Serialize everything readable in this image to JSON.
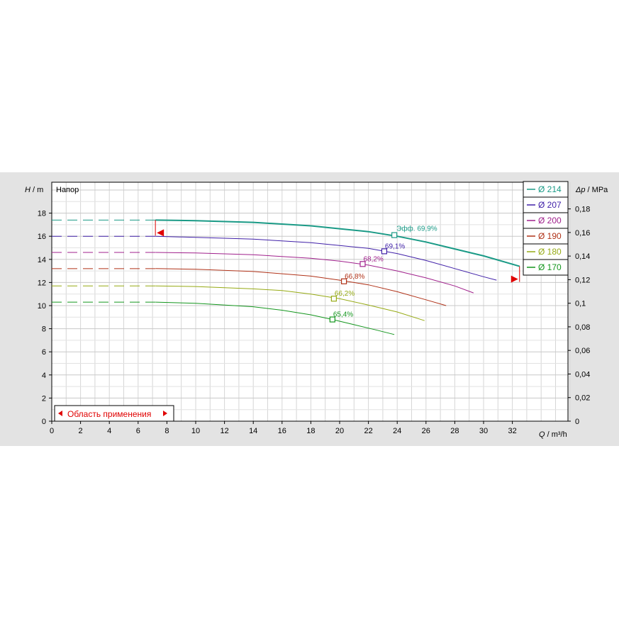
{
  "chart_data": {
    "type": "line",
    "title": "Напор",
    "xlabel": "Q / m³/h",
    "ylabel": "H / m",
    "y2label": "Δp / MPa",
    "xlim": [
      0,
      36
    ],
    "ylim": [
      0,
      20
    ],
    "y2lim": [
      0,
      0.196
    ],
    "xticks": [
      "0",
      "2",
      "4",
      "6",
      "8",
      "10",
      "12",
      "14",
      "16",
      "18",
      "20",
      "22",
      "24",
      "26",
      "28",
      "30",
      "32"
    ],
    "yticks": [
      "0",
      "2",
      "4",
      "6",
      "8",
      "10",
      "12",
      "14",
      "16",
      "18"
    ],
    "y2ticks": [
      "0",
      "0,02",
      "0,04",
      "0,06",
      "0,08",
      "0,1",
      "0,12",
      "0,14",
      "0,16",
      "0,18"
    ],
    "grid": true,
    "legend_position": "top-right",
    "application_range_label": "Область применения",
    "series": [
      {
        "name": "Ø 214",
        "color": "#1a9a86",
        "width": 2,
        "dashed_x": [
          0,
          7.2
        ],
        "dashed_h": 17.4,
        "x": [
          7.2,
          10,
          14,
          18,
          20,
          22,
          24,
          26,
          28,
          30,
          32.5
        ],
        "y": [
          17.4,
          17.35,
          17.2,
          16.9,
          16.65,
          16.4,
          16.0,
          15.5,
          14.9,
          14.3,
          13.4
        ],
        "eff_label": "Эфф.  69,9%",
        "eff_x": 23.8,
        "eff_y": 16.1
      },
      {
        "name": "Ø 207",
        "color": "#4020a8",
        "width": 1,
        "dashed_x": [
          0,
          7.2
        ],
        "dashed_h": 16.0,
        "x": [
          7.2,
          10,
          14,
          18,
          20,
          22,
          24,
          26,
          28,
          30,
          30.9
        ],
        "y": [
          16.0,
          15.9,
          15.75,
          15.45,
          15.2,
          14.95,
          14.5,
          13.9,
          13.2,
          12.5,
          12.2
        ],
        "eff_label": "69,1%",
        "eff_x": 23.1,
        "eff_y": 14.7
      },
      {
        "name": "Ø 200",
        "color": "#a0208c",
        "width": 1,
        "dashed_x": [
          0,
          7.2
        ],
        "dashed_h": 14.6,
        "x": [
          7.2,
          10,
          14,
          18,
          20,
          22,
          24,
          26,
          28,
          29.3
        ],
        "y": [
          14.6,
          14.55,
          14.4,
          14.1,
          13.85,
          13.5,
          13.0,
          12.4,
          11.7,
          11.1
        ],
        "eff_label": "68,2%",
        "eff_x": 21.6,
        "eff_y": 13.6
      },
      {
        "name": "Ø 190",
        "color": "#b03218",
        "width": 1,
        "dashed_x": [
          0,
          7.2
        ],
        "dashed_h": 13.2,
        "x": [
          7.2,
          10,
          14,
          18,
          20,
          22,
          24,
          26,
          27.4
        ],
        "y": [
          13.2,
          13.15,
          12.95,
          12.55,
          12.2,
          11.8,
          11.2,
          10.5,
          10.0
        ],
        "eff_label": "66,8%",
        "eff_x": 20.3,
        "eff_y": 12.1
      },
      {
        "name": "Ø 180",
        "color": "#96aa14",
        "width": 1,
        "dashed_x": [
          0,
          7.2
        ],
        "dashed_h": 11.7,
        "x": [
          7.2,
          10,
          14,
          16,
          18,
          20,
          22,
          24,
          25.9
        ],
        "y": [
          11.7,
          11.65,
          11.45,
          11.3,
          11.0,
          10.6,
          10.05,
          9.45,
          8.7
        ],
        "eff_label": "66,2%",
        "eff_x": 19.6,
        "eff_y": 10.6
      },
      {
        "name": "Ø 170",
        "color": "#14961e",
        "width": 1,
        "dashed_x": [
          0,
          7.2
        ],
        "dashed_h": 10.3,
        "x": [
          7.2,
          10,
          14,
          16,
          18,
          19.5,
          21,
          22.5,
          23.8
        ],
        "y": [
          10.3,
          10.2,
          9.9,
          9.6,
          9.2,
          8.8,
          8.35,
          7.9,
          7.5
        ],
        "eff_label": "65,4%",
        "eff_x": 19.5,
        "eff_y": 8.8
      }
    ],
    "range_min_q": 7.2,
    "range_max_q": 32.5
  }
}
